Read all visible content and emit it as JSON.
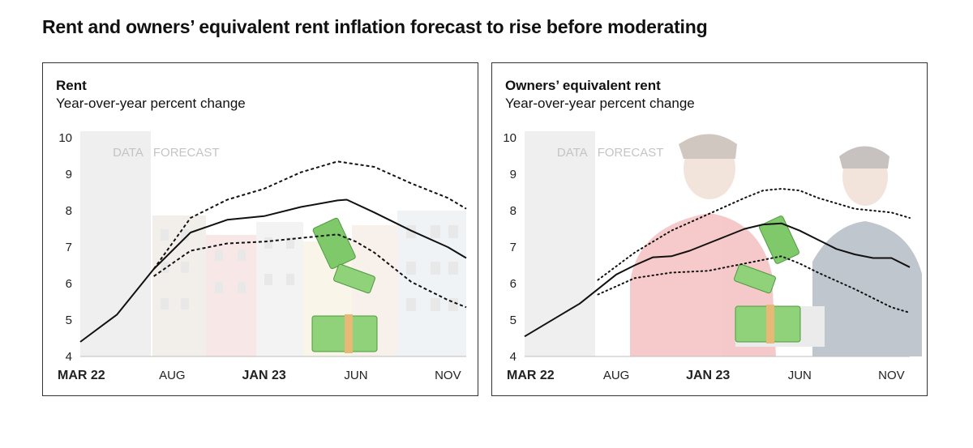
{
  "title": "Rent and owners’ equivalent rent inflation forecast to rise before moderating",
  "chart_data": [
    {
      "type": "line",
      "title": "Rent",
      "subtitle": "Year-over-year percent change",
      "ylim": [
        4,
        10
      ],
      "yticks": [
        "4",
        "5",
        "6",
        "7",
        "8",
        "9",
        "10"
      ],
      "xlim": [
        0,
        21
      ],
      "xticks": [
        {
          "label": "MAR 22",
          "pos": 0,
          "bold": true
        },
        {
          "label": "AUG",
          "pos": 5,
          "bold": false
        },
        {
          "label": "JAN 23",
          "pos": 10,
          "bold": true
        },
        {
          "label": "JUN",
          "pos": 15,
          "bold": false
        },
        {
          "label": "NOV",
          "pos": 20,
          "bold": false
        }
      ],
      "data_end": 3.7,
      "region_labels": {
        "data": "DATA",
        "forecast": "FORECAST"
      },
      "grid": false,
      "series": [
        {
          "style": "solid",
          "x": [
            0,
            2,
            4,
            6,
            8,
            10,
            12,
            14,
            14.5,
            16,
            18,
            20,
            21
          ],
          "y": [
            4.4,
            5.15,
            6.4,
            7.4,
            7.75,
            7.85,
            8.1,
            8.28,
            8.3,
            7.95,
            7.45,
            7.0,
            6.7
          ]
        },
        {
          "style": "dashed",
          "x": [
            4,
            6,
            8,
            10,
            12,
            14,
            16,
            18,
            20,
            21
          ],
          "y": [
            6.4,
            7.8,
            8.3,
            8.6,
            9.05,
            9.35,
            9.2,
            8.75,
            8.35,
            8.05
          ]
        },
        {
          "style": "dashed",
          "x": [
            4,
            6,
            8,
            10,
            12,
            14,
            15,
            16,
            18,
            20,
            21
          ],
          "y": [
            6.2,
            6.9,
            7.1,
            7.15,
            7.25,
            7.35,
            7.15,
            6.85,
            6.05,
            5.55,
            5.35
          ]
        }
      ]
    },
    {
      "type": "line",
      "title": "Owners’ equivalent rent",
      "subtitle": "Year-over-year percent change",
      "ylim": [
        4,
        10
      ],
      "yticks": [
        "4",
        "5",
        "6",
        "7",
        "8",
        "9",
        "10"
      ],
      "xlim": [
        0,
        21
      ],
      "xticks": [
        {
          "label": "MAR 22",
          "pos": 0,
          "bold": true
        },
        {
          "label": "AUG",
          "pos": 5,
          "bold": false
        },
        {
          "label": "JAN 23",
          "pos": 10,
          "bold": true
        },
        {
          "label": "JUN",
          "pos": 15,
          "bold": false
        },
        {
          "label": "NOV",
          "pos": 20,
          "bold": false
        }
      ],
      "data_end": 3.7,
      "region_labels": {
        "data": "DATA",
        "forecast": "FORECAST"
      },
      "grid": false,
      "series": [
        {
          "style": "solid",
          "x": [
            0,
            1,
            2,
            3,
            4,
            5,
            6,
            7,
            8,
            9,
            10,
            11,
            12,
            13,
            14,
            15,
            16,
            17,
            18,
            19,
            20,
            21
          ],
          "y": [
            4.55,
            4.85,
            5.15,
            5.45,
            5.85,
            6.25,
            6.5,
            6.72,
            6.75,
            6.9,
            7.1,
            7.3,
            7.5,
            7.62,
            7.65,
            7.45,
            7.2,
            6.95,
            6.8,
            6.7,
            6.7,
            6.45
          ]
        },
        {
          "style": "dotted",
          "x": [
            4,
            6,
            8,
            10,
            12,
            13,
            14,
            15,
            16,
            18,
            20,
            21
          ],
          "y": [
            6.1,
            6.85,
            7.45,
            7.9,
            8.35,
            8.55,
            8.6,
            8.55,
            8.35,
            8.05,
            7.95,
            7.8
          ]
        },
        {
          "style": "dotted",
          "x": [
            4,
            6,
            8,
            10,
            12,
            13,
            14,
            15,
            16,
            18,
            20,
            21
          ],
          "y": [
            5.7,
            6.15,
            6.3,
            6.35,
            6.55,
            6.65,
            6.75,
            6.55,
            6.3,
            5.85,
            5.35,
            5.2
          ]
        }
      ]
    }
  ]
}
